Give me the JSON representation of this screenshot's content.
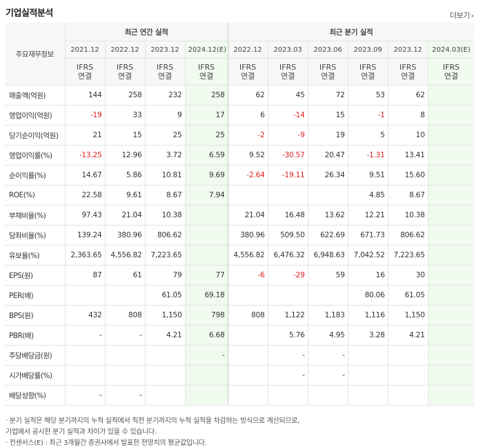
{
  "title": "기업실적분석",
  "more_label": "더보기",
  "headers": {
    "row_label": "주요재무정보",
    "annual_group": "최근 연간 실적",
    "quarter_group": "최근 분기 실적",
    "annual_periods": [
      "2021.12",
      "2022.12",
      "2023.12",
      "2024.12(E)"
    ],
    "quarter_periods": [
      "2022.12",
      "2023.03",
      "2023.06",
      "2023.09",
      "2023.12",
      "2024.03(E)"
    ],
    "ifrs_line1": "IFRS",
    "ifrs_line2": "연결"
  },
  "rows": [
    {
      "label": "매출액(억원)",
      "annual": [
        "144",
        "258",
        "232",
        "258"
      ],
      "quarter": [
        "62",
        "45",
        "72",
        "53",
        "62",
        ""
      ]
    },
    {
      "label": "영업이익(억원)",
      "annual": [
        "-19",
        "33",
        "9",
        "17"
      ],
      "quarter": [
        "6",
        "-14",
        "15",
        "-1",
        "8",
        ""
      ]
    },
    {
      "label": "당기순이익(억원)",
      "annual": [
        "21",
        "15",
        "25",
        "25"
      ],
      "quarter": [
        "-2",
        "-9",
        "19",
        "5",
        "10",
        ""
      ]
    },
    {
      "label": "영업이익률(%)",
      "annual": [
        "-13.25",
        "12.96",
        "3.72",
        "6.59"
      ],
      "quarter": [
        "9.52",
        "-30.57",
        "20.47",
        "-1.31",
        "13.41",
        ""
      ]
    },
    {
      "label": "순이익률(%)",
      "annual": [
        "14.67",
        "5.86",
        "10.81",
        "9.69"
      ],
      "quarter": [
        "-2.64",
        "-19.11",
        "26.34",
        "9.51",
        "15.60",
        ""
      ]
    },
    {
      "label": "ROE(%)",
      "annual": [
        "22.58",
        "9.61",
        "8.67",
        "7.94"
      ],
      "quarter": [
        "",
        "",
        "",
        "4.85",
        "8.67",
        ""
      ]
    },
    {
      "label": "부채비율(%)",
      "annual": [
        "97.43",
        "21.04",
        "10.38",
        ""
      ],
      "quarter": [
        "21.04",
        "16.48",
        "13.62",
        "12.21",
        "10.38",
        ""
      ]
    },
    {
      "label": "당좌비율(%)",
      "annual": [
        "139.24",
        "380.96",
        "806.62",
        ""
      ],
      "quarter": [
        "380.96",
        "509.50",
        "622.69",
        "671.73",
        "806.62",
        ""
      ]
    },
    {
      "label": "유보율(%)",
      "annual": [
        "2,363.65",
        "4,556.82",
        "7,223.65",
        ""
      ],
      "quarter": [
        "4,556.82",
        "6,476.32",
        "6,948.63",
        "7,042.52",
        "7,223.65",
        ""
      ]
    },
    {
      "label": "EPS(원)",
      "annual": [
        "87",
        "61",
        "79",
        "77"
      ],
      "quarter": [
        "-6",
        "-29",
        "59",
        "16",
        "30",
        ""
      ]
    },
    {
      "label": "PER(배)",
      "annual": [
        "",
        "",
        "61.05",
        "69.18"
      ],
      "quarter": [
        "",
        "",
        "",
        "80.06",
        "61.05",
        ""
      ]
    },
    {
      "label": "BPS(원)",
      "annual": [
        "432",
        "808",
        "1,150",
        "798"
      ],
      "quarter": [
        "808",
        "1,122",
        "1,183",
        "1,116",
        "1,150",
        ""
      ]
    },
    {
      "label": "PBR(배)",
      "annual": [
        "-",
        "-",
        "4.21",
        "6.68"
      ],
      "quarter": [
        "",
        "5.76",
        "4.95",
        "3.28",
        "4.21",
        ""
      ]
    },
    {
      "label": "주당배당금(원)",
      "annual": [
        "",
        "",
        "",
        "-"
      ],
      "quarter": [
        "",
        "-",
        "-",
        "",
        "",
        ""
      ]
    },
    {
      "label": "시가배당률(%)",
      "annual": [
        "",
        "",
        "",
        ""
      ],
      "quarter": [
        "",
        "-",
        "-",
        "",
        "",
        ""
      ]
    },
    {
      "label": "배당성향(%)",
      "annual": [
        "-",
        "-",
        "",
        ""
      ],
      "quarter": [
        "",
        "",
        "",
        "",
        "",
        ""
      ]
    }
  ],
  "footnotes": [
    "· 분기 실적은 해당 분기까지의 누적 실적에서 직전 분기까지의 누적 실적을 차감하는 방식으로 계산되므로,",
    "  기업에서 공시한 분기 실적과 차이가 있을 수 있습니다.",
    "· 컨센서스(E) : 최근 3개월간 증권사에서 발표한 전망치의 평균값입니다."
  ],
  "colors": {
    "ifrs": "#e8590c",
    "negative": "#e02020",
    "estimate_bg": "#f0faef"
  }
}
